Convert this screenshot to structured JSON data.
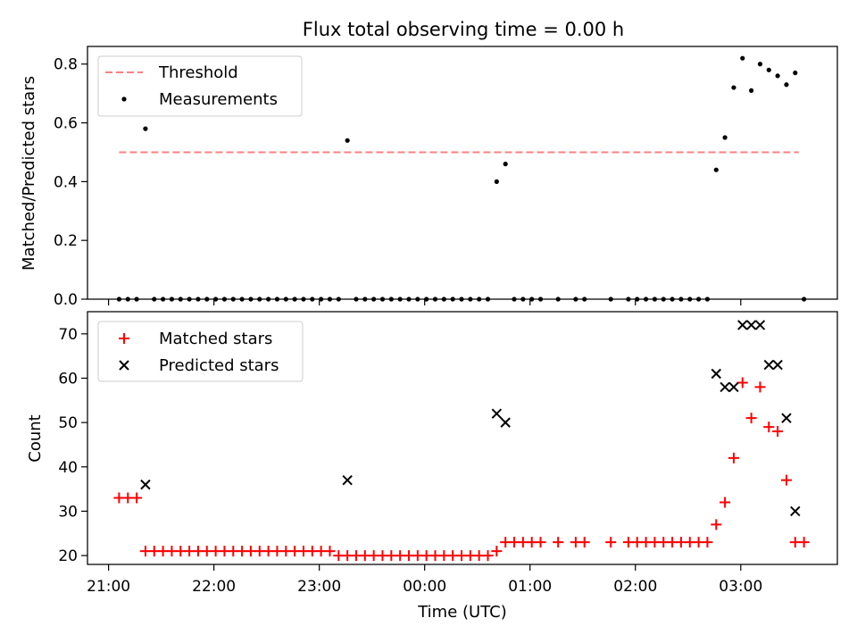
{
  "figure": {
    "title": "Flux total observing time = 0.00 h"
  },
  "chart_data": [
    {
      "type": "scatter",
      "ylabel": "Matched/Predicted stars",
      "xlabel": "",
      "xlim": [
        "20:48",
        "03:55"
      ],
      "ylim": [
        0,
        0.86
      ],
      "yticks": [
        0.0,
        0.2,
        0.4,
        0.6,
        0.8
      ],
      "ytick_labels": [
        "0.0",
        "0.2",
        "0.4",
        "0.6",
        "0.8"
      ],
      "xticks": [
        "21:00",
        "22:00",
        "23:00",
        "00:00",
        "01:00",
        "02:00",
        "03:00"
      ],
      "show_x_tick_labels": false,
      "grid": false,
      "legend": {
        "position": "upper-left",
        "entries": [
          "Threshold",
          "Measurements"
        ]
      },
      "threshold": {
        "name": "Threshold",
        "value": 0.5,
        "x_start": "21:06",
        "x_end": "03:33",
        "color": "#ff7f7f",
        "style": "dashed"
      },
      "series": [
        {
          "name": "Measurements",
          "marker": "dot",
          "color": "#000000",
          "points": [
            [
              "21:06",
              0
            ],
            [
              "21:11",
              0
            ],
            [
              "21:16",
              0
            ],
            [
              "21:21",
              0.58
            ],
            [
              "21:26",
              0
            ],
            [
              "21:31",
              0
            ],
            [
              "21:36",
              0
            ],
            [
              "21:41",
              0
            ],
            [
              "21:46",
              0
            ],
            [
              "21:51",
              0
            ],
            [
              "21:56",
              0
            ],
            [
              "22:01",
              0
            ],
            [
              "22:06",
              0
            ],
            [
              "22:11",
              0
            ],
            [
              "22:16",
              0
            ],
            [
              "22:21",
              0
            ],
            [
              "22:26",
              0
            ],
            [
              "22:31",
              0
            ],
            [
              "22:36",
              0
            ],
            [
              "22:41",
              0
            ],
            [
              "22:46",
              0
            ],
            [
              "22:51",
              0
            ],
            [
              "22:56",
              0
            ],
            [
              "23:01",
              0
            ],
            [
              "23:06",
              0
            ],
            [
              "23:11",
              0
            ],
            [
              "23:16",
              0.54
            ],
            [
              "23:21",
              0
            ],
            [
              "23:26",
              0
            ],
            [
              "23:31",
              0
            ],
            [
              "23:36",
              0
            ],
            [
              "23:41",
              0
            ],
            [
              "23:46",
              0
            ],
            [
              "23:51",
              0
            ],
            [
              "23:56",
              0
            ],
            [
              "00:01",
              0
            ],
            [
              "00:06",
              0
            ],
            [
              "00:11",
              0
            ],
            [
              "00:16",
              0
            ],
            [
              "00:21",
              0
            ],
            [
              "00:26",
              0
            ],
            [
              "00:31",
              0
            ],
            [
              "00:36",
              0
            ],
            [
              "00:41",
              0.4
            ],
            [
              "00:46",
              0.46
            ],
            [
              "00:51",
              0
            ],
            [
              "00:56",
              0
            ],
            [
              "01:01",
              0
            ],
            [
              "01:06",
              0
            ],
            [
              "01:16",
              0
            ],
            [
              "01:26",
              0
            ],
            [
              "01:31",
              0
            ],
            [
              "01:46",
              0
            ],
            [
              "01:56",
              0
            ],
            [
              "02:01",
              0
            ],
            [
              "02:06",
              0
            ],
            [
              "02:11",
              0
            ],
            [
              "02:16",
              0
            ],
            [
              "02:21",
              0
            ],
            [
              "02:26",
              0
            ],
            [
              "02:31",
              0
            ],
            [
              "02:36",
              0
            ],
            [
              "02:41",
              0
            ],
            [
              "02:46",
              0.44
            ],
            [
              "02:51",
              0.55
            ],
            [
              "02:56",
              0.72
            ],
            [
              "03:01",
              0.82
            ],
            [
              "03:06",
              0.71
            ],
            [
              "03:11",
              0.8
            ],
            [
              "03:16",
              0.78
            ],
            [
              "03:21",
              0.76
            ],
            [
              "03:26",
              0.73
            ],
            [
              "03:31",
              0.77
            ],
            [
              "03:36",
              0
            ]
          ]
        }
      ]
    },
    {
      "type": "scatter",
      "ylabel": "Count",
      "xlabel": "Time (UTC)",
      "xlim": [
        "20:48",
        "03:55"
      ],
      "ylim": [
        18,
        75
      ],
      "yticks": [
        20,
        30,
        40,
        50,
        60,
        70
      ],
      "ytick_labels": [
        "20",
        "30",
        "40",
        "50",
        "60",
        "70"
      ],
      "xticks": [
        "21:00",
        "22:00",
        "23:00",
        "00:00",
        "01:00",
        "02:00",
        "03:00"
      ],
      "show_x_tick_labels": true,
      "grid": false,
      "legend": {
        "position": "upper-left",
        "entries": [
          "Matched stars",
          "Predicted stars"
        ]
      },
      "series": [
        {
          "name": "Matched stars",
          "marker": "plus",
          "color": "#ff0000",
          "points": [
            [
              "21:06",
              33
            ],
            [
              "21:11",
              33
            ],
            [
              "21:16",
              33
            ],
            [
              "21:21",
              21
            ],
            [
              "21:26",
              21
            ],
            [
              "21:31",
              21
            ],
            [
              "21:36",
              21
            ],
            [
              "21:41",
              21
            ],
            [
              "21:46",
              21
            ],
            [
              "21:51",
              21
            ],
            [
              "21:56",
              21
            ],
            [
              "22:01",
              21
            ],
            [
              "22:06",
              21
            ],
            [
              "22:11",
              21
            ],
            [
              "22:16",
              21
            ],
            [
              "22:21",
              21
            ],
            [
              "22:26",
              21
            ],
            [
              "22:31",
              21
            ],
            [
              "22:36",
              21
            ],
            [
              "22:41",
              21
            ],
            [
              "22:46",
              21
            ],
            [
              "22:51",
              21
            ],
            [
              "22:56",
              21
            ],
            [
              "23:01",
              21
            ],
            [
              "23:06",
              21
            ],
            [
              "23:11",
              20
            ],
            [
              "23:16",
              20
            ],
            [
              "23:21",
              20
            ],
            [
              "23:26",
              20
            ],
            [
              "23:31",
              20
            ],
            [
              "23:36",
              20
            ],
            [
              "23:41",
              20
            ],
            [
              "23:46",
              20
            ],
            [
              "23:51",
              20
            ],
            [
              "23:56",
              20
            ],
            [
              "00:01",
              20
            ],
            [
              "00:06",
              20
            ],
            [
              "00:11",
              20
            ],
            [
              "00:16",
              20
            ],
            [
              "00:21",
              20
            ],
            [
              "00:26",
              20
            ],
            [
              "00:31",
              20
            ],
            [
              "00:36",
              20
            ],
            [
              "00:41",
              21
            ],
            [
              "00:46",
              23
            ],
            [
              "00:51",
              23
            ],
            [
              "00:56",
              23
            ],
            [
              "01:01",
              23
            ],
            [
              "01:06",
              23
            ],
            [
              "01:16",
              23
            ],
            [
              "01:26",
              23
            ],
            [
              "01:31",
              23
            ],
            [
              "01:46",
              23
            ],
            [
              "01:56",
              23
            ],
            [
              "02:01",
              23
            ],
            [
              "02:06",
              23
            ],
            [
              "02:11",
              23
            ],
            [
              "02:16",
              23
            ],
            [
              "02:21",
              23
            ],
            [
              "02:26",
              23
            ],
            [
              "02:31",
              23
            ],
            [
              "02:36",
              23
            ],
            [
              "02:41",
              23
            ],
            [
              "02:46",
              27
            ],
            [
              "02:51",
              32
            ],
            [
              "02:56",
              42
            ],
            [
              "03:01",
              59
            ],
            [
              "03:06",
              51
            ],
            [
              "03:11",
              58
            ],
            [
              "03:16",
              49
            ],
            [
              "03:21",
              48
            ],
            [
              "03:26",
              37
            ],
            [
              "03:31",
              23
            ],
            [
              "03:36",
              23
            ]
          ]
        },
        {
          "name": "Predicted stars",
          "marker": "x",
          "color": "#000000",
          "points": [
            [
              "21:21",
              36
            ],
            [
              "23:16",
              37
            ],
            [
              "00:41",
              52
            ],
            [
              "00:46",
              50
            ],
            [
              "02:46",
              61
            ],
            [
              "02:51",
              58
            ],
            [
              "02:56",
              58
            ],
            [
              "03:01",
              72
            ],
            [
              "03:06",
              72
            ],
            [
              "03:11",
              72
            ],
            [
              "03:16",
              63
            ],
            [
              "03:21",
              63
            ],
            [
              "03:26",
              51
            ],
            [
              "03:31",
              30
            ]
          ]
        }
      ]
    }
  ]
}
